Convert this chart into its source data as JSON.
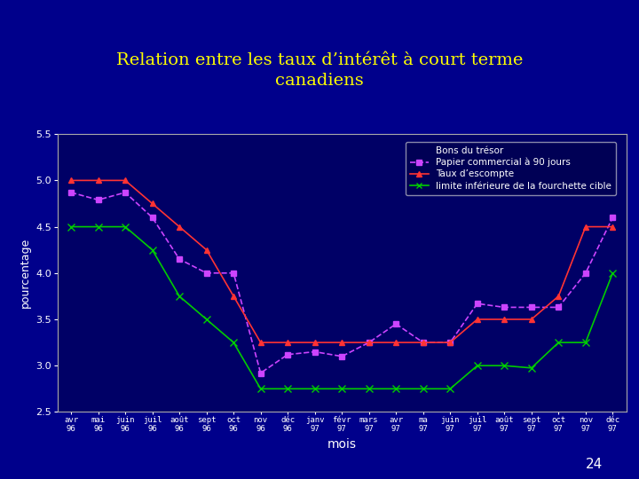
{
  "title": "Relation entre les taux d’intérêt à court terme\ncanadiens",
  "xlabel": "mois",
  "ylabel": "pourcentage",
  "bg_color": "#00008B",
  "plot_bg": "#000066",
  "ylim": [
    2.5,
    5.5
  ],
  "yticks": [
    2.5,
    3.0,
    3.5,
    4.0,
    4.5,
    5.0,
    5.5
  ],
  "tick_labels": [
    "avr\n96",
    "mai\n96",
    "juin\n96",
    "juil\n96",
    "août\n96",
    "sept\n96",
    "oct\n96",
    "nov\n96",
    "déc\n96",
    "janv\n97",
    "févr\n97",
    "mars\n97",
    "avr\n97",
    "ma\n97",
    "juin\n97",
    "juil\n97",
    "août\n97",
    "sept\n97",
    "oct\n97",
    "nov\n97",
    "déc\n97"
  ],
  "papier": {
    "label": "Papier commercial à 90 jours",
    "color": "#cc44ff",
    "linestyle": "--",
    "marker": "s",
    "markersize": 4,
    "values": [
      4.87,
      4.79,
      4.87,
      4.6,
      4.15,
      4.0,
      4.0,
      2.92,
      3.12,
      3.15,
      3.1,
      3.25,
      3.45,
      3.25,
      3.25,
      3.67,
      3.63,
      3.63,
      3.63,
      4.0,
      4.6
    ]
  },
  "taux_escompte": {
    "label": "Taux d’escompte",
    "color": "#ff3333",
    "linestyle": "-",
    "marker": "^",
    "markersize": 5,
    "values": [
      5.0,
      5.0,
      5.0,
      4.75,
      4.5,
      4.25,
      3.75,
      3.25,
      3.25,
      3.25,
      3.25,
      3.25,
      3.25,
      3.25,
      3.25,
      3.5,
      3.5,
      3.5,
      3.75,
      4.5,
      4.5
    ]
  },
  "limite_inf": {
    "label": "limite inférieure de la fourchette cible",
    "color": "#00cc00",
    "linestyle": "-",
    "marker": "x",
    "markersize": 6,
    "values": [
      4.5,
      4.5,
      4.5,
      4.25,
      3.75,
      3.5,
      3.25,
      2.75,
      2.75,
      2.75,
      2.75,
      2.75,
      2.75,
      2.75,
      2.75,
      3.0,
      3.0,
      2.975,
      3.25,
      3.25,
      4.0
    ]
  },
  "title_color": "#ffff00",
  "label_color": "#ffffff",
  "tick_color": "#ffffff",
  "page_number": "24",
  "legend_bons_label": "Bons du trésor"
}
